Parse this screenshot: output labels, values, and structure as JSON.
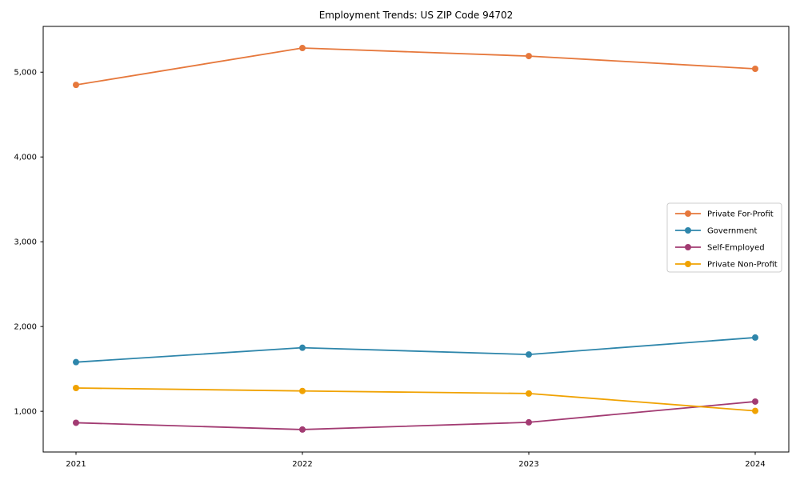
{
  "chart_data": {
    "type": "line",
    "title": "Employment Trends: US ZIP Code 94702",
    "x": [
      "2021",
      "2022",
      "2023",
      "2024"
    ],
    "series": [
      {
        "name": "Private For-Profit",
        "color": "#E6783C",
        "values": [
          4850,
          5285,
          5190,
          5040
        ]
      },
      {
        "name": "Government",
        "color": "#2E86AB",
        "values": [
          1580,
          1750,
          1670,
          1870
        ]
      },
      {
        "name": "Self-Employed",
        "color": "#A23B72",
        "values": [
          865,
          785,
          870,
          1115
        ]
      },
      {
        "name": "Private Non-Profit",
        "color": "#F0A202",
        "values": [
          1275,
          1240,
          1210,
          1005
        ]
      }
    ],
    "yticks": {
      "values": [
        1000,
        2000,
        3000,
        4000,
        5000
      ],
      "labels": [
        "1,000",
        "2,000",
        "3,000",
        "4,000",
        "5,000"
      ]
    },
    "ylim": [
      520,
      5540
    ],
    "grid": false,
    "marker": "circle",
    "legend_position": "center-right",
    "axis_color": "#000000",
    "legend_border_color": "#cccccc",
    "legend_background": "#ffffff"
  }
}
